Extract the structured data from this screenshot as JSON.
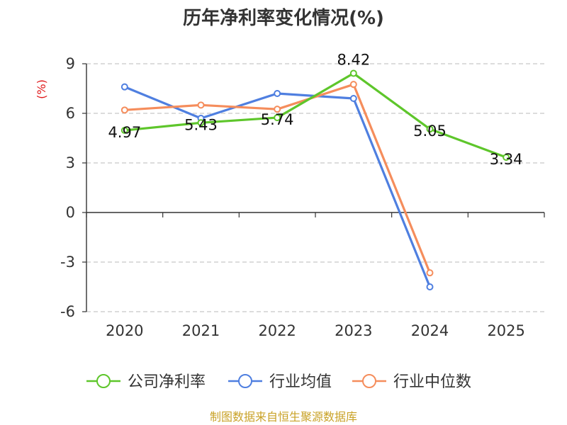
{
  "colors": {
    "company": "#5ec62b",
    "industry_avg": "#4f7fe0",
    "industry_median": "#f58d5c",
    "grid": "#c8c8c8",
    "axis": "#333333",
    "ylabel": "#e0191b",
    "source": "#c9a227"
  },
  "source_text": "制图数据来自恒生聚源数据库",
  "chart_data": {
    "type": "line",
    "title": "历年净利率变化情况(%)",
    "ylabel": "(%)",
    "xlabel": "",
    "categories": [
      "2020",
      "2021",
      "2022",
      "2023",
      "2024",
      "2025"
    ],
    "ylim": [
      -6,
      9
    ],
    "yticks": [
      9,
      6,
      3,
      0,
      -3,
      -6
    ],
    "grid": true,
    "legend_position": "bottom",
    "series": [
      {
        "name": "公司净利率",
        "color_key": "company",
        "values": [
          4.97,
          5.43,
          5.74,
          8.42,
          5.05,
          3.34
        ],
        "labels": [
          "4.97",
          "5.43",
          "5.74",
          "8.42",
          "5.05",
          "3.34"
        ]
      },
      {
        "name": "行业均值",
        "color_key": "industry_avg",
        "values": [
          7.6,
          5.7,
          7.2,
          6.9,
          -4.5,
          null
        ]
      },
      {
        "name": "行业中位数",
        "color_key": "industry_median",
        "values": [
          6.2,
          6.5,
          6.25,
          7.75,
          -3.65,
          null
        ]
      }
    ]
  }
}
